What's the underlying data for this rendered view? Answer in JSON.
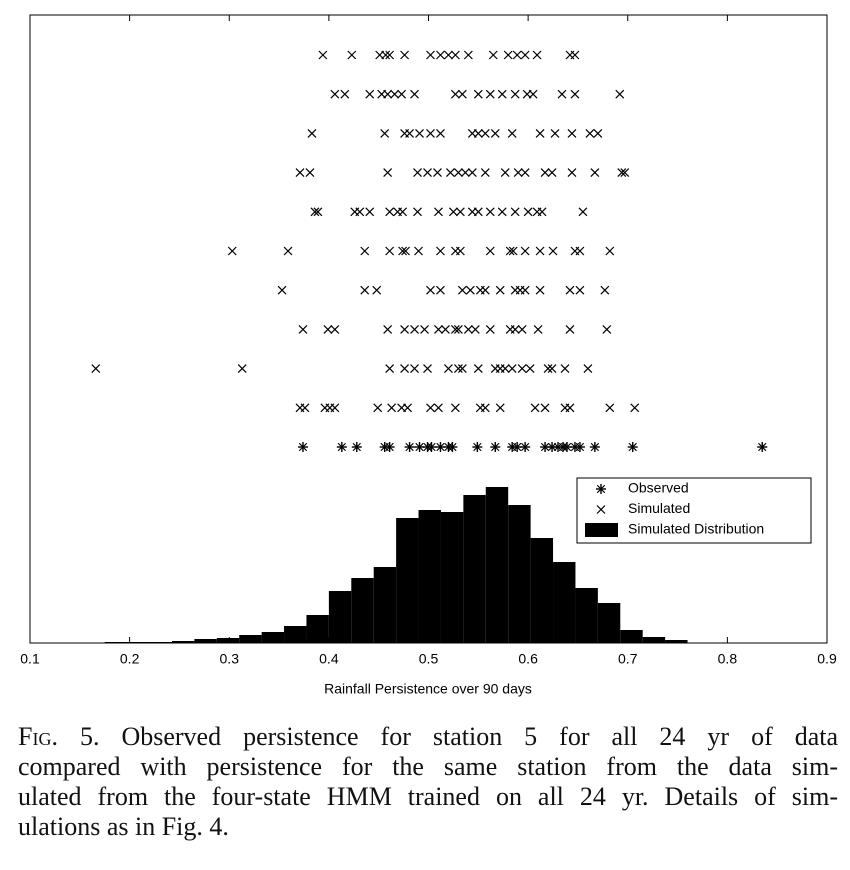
{
  "chart_data": {
    "type": "strip-histogram",
    "xlabel": "Rainfall Persistence over 90 days",
    "xlim": [
      0.1,
      0.9
    ],
    "xticks": [
      0.1,
      0.2,
      0.3,
      0.4,
      0.5,
      0.6,
      0.7,
      0.8,
      0.9
    ],
    "legend": "right",
    "series": [
      {
        "name": "Observed",
        "marker": "*",
        "color": "#000000",
        "values": [
          0.374,
          0.413,
          0.428,
          0.456,
          0.461,
          0.481,
          0.491,
          0.499,
          0.503,
          0.512,
          0.52,
          0.524,
          0.549,
          0.567,
          0.584,
          0.589,
          0.597,
          0.617,
          0.624,
          0.63,
          0.635,
          0.639,
          0.647,
          0.652,
          0.667,
          0.705,
          0.835
        ]
      },
      {
        "name": "Simulated",
        "marker": "x",
        "color": "#000000",
        "rows": [
          [
            0.394,
            0.423,
            0.451,
            0.457,
            0.461,
            0.476,
            0.502,
            0.512,
            0.52,
            0.527,
            0.54,
            0.565,
            0.58,
            0.589,
            0.597,
            0.609,
            0.642,
            0.647
          ],
          [
            0.406,
            0.416,
            0.441,
            0.453,
            0.459,
            0.466,
            0.473,
            0.486,
            0.527,
            0.534,
            0.55,
            0.562,
            0.574,
            0.587,
            0.599,
            0.605,
            0.634,
            0.647,
            0.692
          ],
          [
            0.383,
            0.456,
            0.476,
            0.481,
            0.491,
            0.502,
            0.512,
            0.544,
            0.55,
            0.557,
            0.567,
            0.584,
            0.612,
            0.627,
            0.644,
            0.662,
            0.67
          ],
          [
            0.371,
            0.381,
            0.459,
            0.489,
            0.499,
            0.509,
            0.522,
            0.53,
            0.537,
            0.544,
            0.557,
            0.577,
            0.59,
            0.597,
            0.617,
            0.624,
            0.644,
            0.667,
            0.694,
            0.697
          ],
          [
            0.386,
            0.389,
            0.426,
            0.431,
            0.441,
            0.461,
            0.469,
            0.474,
            0.489,
            0.51,
            0.525,
            0.532,
            0.544,
            0.55,
            0.562,
            0.574,
            0.587,
            0.6,
            0.609,
            0.614,
            0.655
          ],
          [
            0.303,
            0.359,
            0.436,
            0.461,
            0.474,
            0.477,
            0.49,
            0.512,
            0.527,
            0.532,
            0.562,
            0.582,
            0.585,
            0.597,
            0.612,
            0.625,
            0.647,
            0.652,
            0.682
          ],
          [
            0.353,
            0.436,
            0.448,
            0.502,
            0.512,
            0.534,
            0.542,
            0.552,
            0.557,
            0.572,
            0.587,
            0.592,
            0.597,
            0.612,
            0.642,
            0.652,
            0.677
          ],
          [
            0.374,
            0.399,
            0.406,
            0.459,
            0.476,
            0.486,
            0.496,
            0.51,
            0.517,
            0.527,
            0.53,
            0.54,
            0.547,
            0.562,
            0.582,
            0.587,
            0.594,
            0.61,
            0.642,
            0.679
          ],
          [
            0.166,
            0.313,
            0.461,
            0.476,
            0.486,
            0.499,
            0.52,
            0.53,
            0.534,
            0.55,
            0.567,
            0.572,
            0.577,
            0.584,
            0.594,
            0.602,
            0.62,
            0.624,
            0.637,
            0.66
          ],
          [
            0.371,
            0.376,
            0.396,
            0.401,
            0.406,
            0.449,
            0.463,
            0.473,
            0.479,
            0.502,
            0.51,
            0.527,
            0.552,
            0.557,
            0.572,
            0.607,
            0.617,
            0.637,
            0.642,
            0.682,
            0.707
          ]
        ]
      },
      {
        "name": "Simulated Distribution",
        "color": "#000000",
        "bins": [
          0.13,
          0.1525,
          0.175,
          0.1975,
          0.22,
          0.2425,
          0.265,
          0.2875,
          0.31,
          0.3325,
          0.355,
          0.3775,
          0.4,
          0.4225,
          0.445,
          0.4675,
          0.49,
          0.5125,
          0.535,
          0.5575,
          0.58,
          0.6025,
          0.625,
          0.6475,
          0.67,
          0.6925,
          0.715,
          0.7375,
          0.76
        ],
        "counts": [
          0,
          0,
          1,
          1,
          1,
          2,
          4,
          5,
          8,
          11,
          17,
          28,
          52,
          65,
          76,
          125,
          133,
          131,
          148,
          156,
          138,
          105,
          81,
          55,
          40,
          13,
          6,
          3
        ],
        "ylim": [
          0,
          628
        ]
      }
    ]
  },
  "caption": {
    "label": "Fig. 5.",
    "lines": [
      "Observed persistence for station 5 for all 24 yr of data",
      "compared with persistence for the same station from the data sim-",
      "ulated from the four-state HMM trained on all 24 yr. Details of sim-",
      "ulations as in Fig. 4."
    ]
  }
}
